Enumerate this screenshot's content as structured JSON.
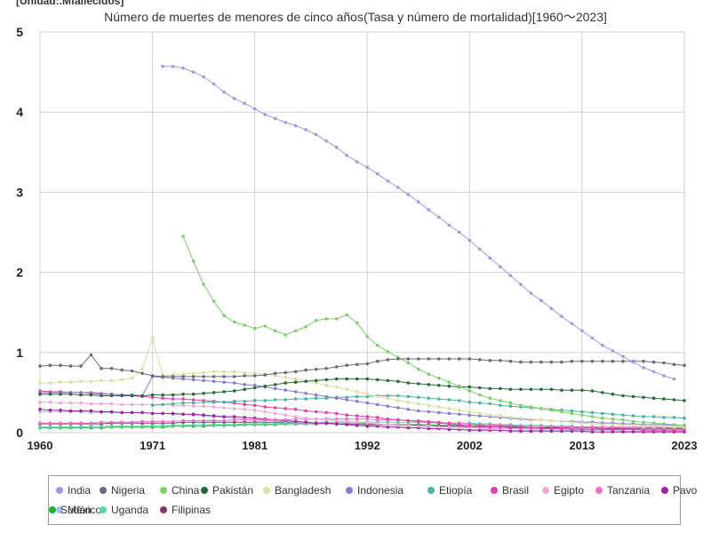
{
  "unit_label": "[Unidad:.Mfallecidos]",
  "chart_data": {
    "type": "line",
    "title": "Número de muertes de menores de cinco años(Tasa y número de mortalidad)[1960～2023]",
    "xlabel": "",
    "ylabel": "",
    "xlim": [
      1960,
      2023
    ],
    "ylim": [
      0,
      5
    ],
    "x_ticks": [
      "1960",
      "1971",
      "1981",
      "1992",
      "2002",
      "2013",
      "2023"
    ],
    "y_ticks": [
      "0",
      "1",
      "2",
      "3",
      "4",
      "5"
    ],
    "grid": true,
    "legend_position": "bottom",
    "series": [
      {
        "name": "India",
        "color": "#9b9be0",
        "start": 1972,
        "values": [
          4.57,
          4.57,
          4.55,
          4.5,
          4.44,
          4.35,
          4.25,
          4.17,
          4.11,
          4.04,
          3.97,
          3.92,
          3.87,
          3.83,
          3.78,
          3.72,
          3.64,
          3.56,
          3.46,
          3.38,
          3.31,
          3.23,
          3.14,
          3.06,
          2.97,
          2.88,
          2.78,
          2.69,
          2.59,
          2.5,
          2.4,
          2.29,
          2.18,
          2.07,
          1.96,
          1.85,
          1.74,
          1.65,
          1.55,
          1.45,
          1.36,
          1.27,
          1.18,
          1.09,
          1.02,
          0.95,
          0.88,
          0.81,
          0.76,
          0.71,
          0.67
        ]
      },
      {
        "name": "Nigeria",
        "color": "#6a6a7a",
        "start": 1960,
        "values": [
          0.83,
          0.84,
          0.84,
          0.83,
          0.83,
          0.97,
          0.8,
          0.8,
          0.78,
          0.77,
          0.74,
          0.71,
          0.7,
          0.7,
          0.7,
          0.7,
          0.7,
          0.7,
          0.7,
          0.7,
          0.71,
          0.71,
          0.72,
          0.74,
          0.75,
          0.76,
          0.78,
          0.79,
          0.8,
          0.82,
          0.84,
          0.85,
          0.86,
          0.89,
          0.91,
          0.92,
          0.92,
          0.92,
          0.92,
          0.92,
          0.92,
          0.92,
          0.92,
          0.91,
          0.9,
          0.9,
          0.89,
          0.88,
          0.88,
          0.88,
          0.88,
          0.88,
          0.89,
          0.89,
          0.89,
          0.89,
          0.89,
          0.89,
          0.89,
          0.89,
          0.88,
          0.87,
          0.85,
          0.84
        ]
      },
      {
        "name": "China",
        "color": "#7ccf6a",
        "start": 1974,
        "values": [
          2.45,
          2.14,
          1.85,
          1.64,
          1.46,
          1.38,
          1.34,
          1.3,
          1.33,
          1.27,
          1.22,
          1.27,
          1.32,
          1.4,
          1.42,
          1.42,
          1.47,
          1.37,
          1.2,
          1.09,
          1.01,
          0.94,
          0.87,
          0.79,
          0.73,
          0.68,
          0.63,
          0.58,
          0.52,
          0.47,
          0.43,
          0.4,
          0.37,
          0.34,
          0.32,
          0.3,
          0.28,
          0.26,
          0.24,
          0.22,
          0.2,
          0.18,
          0.17,
          0.16,
          0.14,
          0.13,
          0.12,
          0.11,
          0.1,
          0.09
        ]
      },
      {
        "name": "Pakistán",
        "color": "#2a6a3a",
        "start": 1960,
        "values": [
          0.48,
          0.48,
          0.48,
          0.48,
          0.47,
          0.47,
          0.46,
          0.46,
          0.46,
          0.46,
          0.46,
          0.47,
          0.47,
          0.47,
          0.48,
          0.48,
          0.49,
          0.5,
          0.51,
          0.52,
          0.54,
          0.56,
          0.58,
          0.6,
          0.62,
          0.63,
          0.64,
          0.65,
          0.66,
          0.67,
          0.67,
          0.67,
          0.67,
          0.66,
          0.65,
          0.64,
          0.62,
          0.61,
          0.6,
          0.59,
          0.58,
          0.57,
          0.57,
          0.56,
          0.55,
          0.55,
          0.54,
          0.54,
          0.54,
          0.54,
          0.54,
          0.53,
          0.53,
          0.53,
          0.52,
          0.5,
          0.48,
          0.46,
          0.45,
          0.44,
          0.43,
          0.42,
          0.41,
          0.4
        ]
      },
      {
        "name": "Bangladesh",
        "color": "#d8e0a0",
        "start": 1960,
        "values": [
          0.62,
          0.62,
          0.63,
          0.63,
          0.64,
          0.64,
          0.65,
          0.65,
          0.66,
          0.68,
          0.8,
          1.18,
          0.72,
          0.72,
          0.73,
          0.74,
          0.75,
          0.76,
          0.76,
          0.76,
          0.75,
          0.74,
          0.73,
          0.71,
          0.69,
          0.67,
          0.65,
          0.62,
          0.59,
          0.57,
          0.54,
          0.51,
          0.48,
          0.45,
          0.43,
          0.4,
          0.38,
          0.36,
          0.34,
          0.32,
          0.3,
          0.28,
          0.26,
          0.24,
          0.22,
          0.21,
          0.19,
          0.18,
          0.17,
          0.16,
          0.15,
          0.14,
          0.13,
          0.12,
          0.11,
          0.1,
          0.1,
          0.09,
          0.09,
          0.08,
          0.08,
          0.08,
          0.07,
          0.07
        ]
      },
      {
        "name": "Indonesia",
        "color": "#8a7ad0",
        "start": 1960,
        "values": [
          0.5,
          0.5,
          0.5,
          0.5,
          0.5,
          0.5,
          0.49,
          0.48,
          0.47,
          0.47,
          0.46,
          0.7,
          0.69,
          0.68,
          0.67,
          0.66,
          0.65,
          0.64,
          0.63,
          0.62,
          0.6,
          0.59,
          0.57,
          0.55,
          0.53,
          0.51,
          0.49,
          0.47,
          0.45,
          0.43,
          0.41,
          0.39,
          0.37,
          0.35,
          0.33,
          0.31,
          0.29,
          0.27,
          0.26,
          0.25,
          0.24,
          0.23,
          0.22,
          0.21,
          0.2,
          0.19,
          0.18,
          0.17,
          0.16,
          0.16,
          0.15,
          0.14,
          0.14,
          0.13,
          0.13,
          0.12,
          0.12,
          0.11,
          0.11,
          0.1,
          0.1,
          0.1,
          0.09,
          0.09
        ]
      },
      {
        "name": "Etiopía",
        "color": "#4ab4a4",
        "start": 1971,
        "values": [
          0.34,
          0.35,
          0.36,
          0.37,
          0.37,
          0.38,
          0.38,
          0.38,
          0.39,
          0.39,
          0.4,
          0.4,
          0.41,
          0.41,
          0.42,
          0.42,
          0.43,
          0.43,
          0.44,
          0.44,
          0.45,
          0.45,
          0.46,
          0.46,
          0.46,
          0.45,
          0.44,
          0.43,
          0.42,
          0.41,
          0.4,
          0.38,
          0.37,
          0.36,
          0.34,
          0.33,
          0.32,
          0.31,
          0.3,
          0.29,
          0.28,
          0.27,
          0.26,
          0.25,
          0.24,
          0.23,
          0.22,
          0.21,
          0.2,
          0.2,
          0.19,
          0.19,
          0.18
        ]
      },
      {
        "name": "Brasil",
        "color": "#e040b0",
        "start": 1960,
        "values": [
          0.52,
          0.51,
          0.51,
          0.5,
          0.5,
          0.49,
          0.48,
          0.48,
          0.47,
          0.46,
          0.45,
          0.44,
          0.43,
          0.42,
          0.42,
          0.41,
          0.4,
          0.39,
          0.38,
          0.37,
          0.35,
          0.34,
          0.32,
          0.31,
          0.3,
          0.29,
          0.27,
          0.26,
          0.25,
          0.24,
          0.22,
          0.21,
          0.2,
          0.19,
          0.17,
          0.16,
          0.15,
          0.14,
          0.13,
          0.12,
          0.11,
          0.1,
          0.09,
          0.08,
          0.07,
          0.07,
          0.06,
          0.06,
          0.06,
          0.05,
          0.05,
          0.05,
          0.04,
          0.04,
          0.04,
          0.04,
          0.04,
          0.04,
          0.04,
          0.03,
          0.03,
          0.03,
          0.03,
          0.03
        ]
      },
      {
        "name": "Egipto",
        "color": "#f0a8d8",
        "start": 1960,
        "values": [
          0.38,
          0.38,
          0.37,
          0.37,
          0.37,
          0.36,
          0.36,
          0.36,
          0.35,
          0.35,
          0.35,
          0.35,
          0.35,
          0.34,
          0.34,
          0.33,
          0.33,
          0.32,
          0.31,
          0.3,
          0.29,
          0.28,
          0.26,
          0.24,
          0.22,
          0.2,
          0.18,
          0.17,
          0.16,
          0.15,
          0.14,
          0.13,
          0.12,
          0.11,
          0.1,
          0.09,
          0.09,
          0.08,
          0.08,
          0.07,
          0.07,
          0.06,
          0.06,
          0.06,
          0.05,
          0.05,
          0.05,
          0.05,
          0.05,
          0.05,
          0.05,
          0.05,
          0.05,
          0.05,
          0.04,
          0.04,
          0.04,
          0.04,
          0.04,
          0.04,
          0.04,
          0.04,
          0.04,
          0.04
        ]
      },
      {
        "name": "Tanzania",
        "color": "#f070c8",
        "start": 1960,
        "values": [
          0.12,
          0.12,
          0.12,
          0.12,
          0.12,
          0.12,
          0.13,
          0.13,
          0.13,
          0.13,
          0.14,
          0.14,
          0.14,
          0.14,
          0.15,
          0.15,
          0.15,
          0.15,
          0.15,
          0.16,
          0.16,
          0.16,
          0.16,
          0.16,
          0.16,
          0.17,
          0.17,
          0.17,
          0.17,
          0.17,
          0.17,
          0.17,
          0.17,
          0.16,
          0.16,
          0.16,
          0.15,
          0.15,
          0.14,
          0.13,
          0.12,
          0.12,
          0.11,
          0.1,
          0.1,
          0.09,
          0.09,
          0.08,
          0.08,
          0.08,
          0.08,
          0.07,
          0.07,
          0.07,
          0.07,
          0.07,
          0.07,
          0.07,
          0.07,
          0.07,
          0.07,
          0.07,
          0.07,
          0.07
        ]
      },
      {
        "name": "Pavo",
        "color": "#a020a0",
        "start": 1960,
        "values": [
          0.29,
          0.28,
          0.28,
          0.27,
          0.27,
          0.27,
          0.26,
          0.26,
          0.25,
          0.25,
          0.25,
          0.24,
          0.24,
          0.24,
          0.23,
          0.23,
          0.22,
          0.21,
          0.2,
          0.2,
          0.19,
          0.18,
          0.17,
          0.16,
          0.15,
          0.14,
          0.13,
          0.12,
          0.12,
          0.11,
          0.1,
          0.09,
          0.08,
          0.08,
          0.07,
          0.07,
          0.06,
          0.06,
          0.05,
          0.05,
          0.04,
          0.04,
          0.03,
          0.03,
          0.03,
          0.03,
          0.02,
          0.02,
          0.02,
          0.02,
          0.02,
          0.02,
          0.02,
          0.02,
          0.01,
          0.01,
          0.01,
          0.01,
          0.01,
          0.01,
          0.01,
          0.01,
          0.01,
          0.01
        ]
      },
      {
        "name": "México",
        "color": "#a8c0e8",
        "start": 1960,
        "values": [
          0.26,
          0.26,
          0.26,
          0.26,
          0.26,
          0.25,
          0.25,
          0.25,
          0.25,
          0.25,
          0.25,
          0.24,
          0.24,
          0.23,
          0.23,
          0.22,
          0.21,
          0.2,
          0.19,
          0.18,
          0.17,
          0.16,
          0.15,
          0.15,
          0.14,
          0.13,
          0.12,
          0.12,
          0.11,
          0.1,
          0.1,
          0.09,
          0.08,
          0.08,
          0.07,
          0.07,
          0.06,
          0.06,
          0.05,
          0.05,
          0.05,
          0.04,
          0.04,
          0.04,
          0.04,
          0.03,
          0.03,
          0.03,
          0.03,
          0.03,
          0.03,
          0.03,
          0.03,
          0.03,
          0.03,
          0.03,
          0.03,
          0.02,
          0.02,
          0.02,
          0.02,
          0.02,
          0.02,
          0.02
        ]
      },
      {
        "name": "Uganda",
        "color": "#50d8a0",
        "start": 1960,
        "values": [
          0.07,
          0.07,
          0.07,
          0.07,
          0.07,
          0.08,
          0.08,
          0.08,
          0.08,
          0.08,
          0.08,
          0.09,
          0.09,
          0.09,
          0.09,
          0.1,
          0.1,
          0.1,
          0.1,
          0.1,
          0.11,
          0.11,
          0.11,
          0.11,
          0.12,
          0.12,
          0.12,
          0.12,
          0.13,
          0.13,
          0.13,
          0.13,
          0.13,
          0.13,
          0.13,
          0.13,
          0.13,
          0.13,
          0.13,
          0.12,
          0.12,
          0.12,
          0.12,
          0.11,
          0.11,
          0.1,
          0.1,
          0.09,
          0.09,
          0.09,
          0.08,
          0.08,
          0.08,
          0.07,
          0.07,
          0.07,
          0.07,
          0.06,
          0.06,
          0.06,
          0.06,
          0.06,
          0.06,
          0.06
        ]
      },
      {
        "name": "Filipinas",
        "color": "#7a3a6a",
        "start": 1960,
        "values": [
          0.11,
          0.11,
          0.11,
          0.11,
          0.11,
          0.11,
          0.11,
          0.12,
          0.12,
          0.12,
          0.12,
          0.12,
          0.12,
          0.12,
          0.13,
          0.13,
          0.13,
          0.13,
          0.13,
          0.13,
          0.13,
          0.13,
          0.13,
          0.13,
          0.13,
          0.12,
          0.12,
          0.12,
          0.12,
          0.11,
          0.11,
          0.11,
          0.1,
          0.1,
          0.1,
          0.09,
          0.09,
          0.09,
          0.08,
          0.08,
          0.08,
          0.08,
          0.07,
          0.07,
          0.07,
          0.07,
          0.07,
          0.07,
          0.06,
          0.06,
          0.06,
          0.06,
          0.06,
          0.06,
          0.06,
          0.05,
          0.05,
          0.05,
          0.05,
          0.05,
          0.05,
          0.05,
          0.05,
          0.05
        ]
      },
      {
        "name": "Sudán",
        "color": "#20b030",
        "start": 1960,
        "values": [
          0.06,
          0.06,
          0.06,
          0.06,
          0.06,
          0.06,
          0.06,
          0.07,
          0.07,
          0.07,
          0.07,
          0.07,
          0.07,
          0.08,
          0.08,
          0.08,
          0.08,
          0.09,
          0.09,
          0.09,
          0.1,
          0.1,
          0.1,
          0.1,
          0.11,
          0.11,
          0.11,
          0.11,
          0.11,
          0.11,
          0.11,
          0.11,
          0.11,
          0.11,
          0.1,
          0.1,
          0.1,
          0.1,
          0.1,
          0.09,
          0.09,
          0.09,
          0.09,
          0.09,
          0.08,
          0.08,
          0.08,
          0.08,
          0.08,
          0.08,
          0.07,
          0.07,
          0.07,
          0.07,
          0.07,
          0.07,
          0.06,
          0.06,
          0.06,
          0.06,
          0.06,
          0.06,
          0.06,
          0.06
        ]
      }
    ]
  }
}
